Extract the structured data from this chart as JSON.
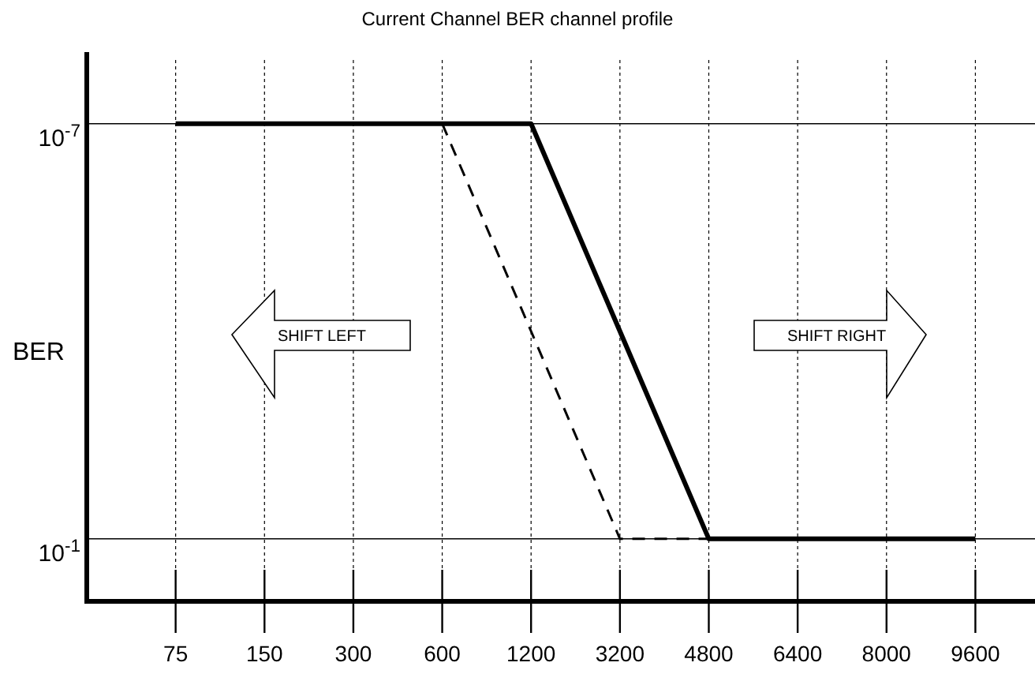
{
  "chart_data": {
    "type": "line",
    "title": "Current Channel BER channel profile",
    "ylabel": "BER",
    "categories": [
      "75",
      "150",
      "300",
      "600",
      "1200",
      "3200",
      "4800",
      "6400",
      "8000",
      "9600"
    ],
    "series": [
      {
        "color": "#000000",
        "line_style": "solid",
        "values": [
          1e-07,
          1e-07,
          1e-07,
          1e-07,
          1e-07,
          0.0001,
          0.1,
          0.1,
          0.1,
          0.1
        ]
      },
      {
        "color": "#000000",
        "line_style": "dashed",
        "values": [
          null,
          null,
          null,
          1e-07,
          0.0001,
          0.1,
          0.1,
          null,
          null,
          null
        ]
      }
    ],
    "log": "y",
    "ylim": [
      0.8,
      1.2e-08
    ],
    "yticks": [
      {
        "value": 1e-07,
        "label": "10$^{-7}$"
      },
      {
        "value": 0.1,
        "label": "10$^{-1}$"
      }
    ],
    "grid": true,
    "annotations": [
      "SHIFT LEFT",
      "SHIFT RIGHT"
    ]
  }
}
